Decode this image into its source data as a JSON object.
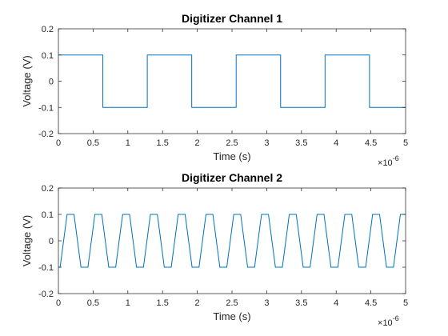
{
  "figure": {
    "background": "#ffffff"
  },
  "chart_data": [
    {
      "type": "line",
      "title": "Digitizer Channel 1",
      "xlabel": "Time (s)",
      "ylabel": "Voltage (V)",
      "xlim": [
        0,
        5
      ],
      "ylim": [
        -0.2,
        0.2
      ],
      "x_multiplier": "10",
      "x_multiplier_exponent": "-6",
      "xticks": [
        0,
        0.5,
        1,
        1.5,
        2,
        2.5,
        3,
        3.5,
        4,
        4.5,
        5
      ],
      "xtick_labels": [
        "0",
        "0.5",
        "1",
        "1.5",
        "2",
        "2.5",
        "3",
        "3.5",
        "4",
        "4.5",
        "5"
      ],
      "yticks": [
        -0.2,
        -0.1,
        0,
        0.1,
        0.2
      ],
      "ytick_labels": [
        "-0.2",
        "-0.1",
        "0",
        "0.1",
        "0.2"
      ],
      "grid": false,
      "series": [
        {
          "color": "#0072bd",
          "x": [
            0,
            0.64,
            0.64,
            1.28,
            1.28,
            1.92,
            1.92,
            2.56,
            2.56,
            3.2,
            3.2,
            3.84,
            3.84,
            4.48,
            4.48,
            5
          ],
          "y": [
            0.1,
            0.1,
            -0.1,
            -0.1,
            0.1,
            0.1,
            -0.1,
            -0.1,
            0.1,
            0.1,
            -0.1,
            -0.1,
            0.1,
            0.1,
            -0.1,
            -0.1
          ]
        }
      ]
    },
    {
      "type": "line",
      "title": "Digitizer Channel 2",
      "xlabel": "Time (s)",
      "ylabel": "Voltage (V)",
      "xlim": [
        0,
        5
      ],
      "ylim": [
        -0.2,
        0.2
      ],
      "x_multiplier": "10",
      "x_multiplier_exponent": "-6",
      "xticks": [
        0,
        0.5,
        1,
        1.5,
        2,
        2.5,
        3,
        3.5,
        4,
        4.5,
        5
      ],
      "xtick_labels": [
        "0",
        "0.5",
        "1",
        "1.5",
        "2",
        "2.5",
        "3",
        "3.5",
        "4",
        "4.5",
        "5"
      ],
      "yticks": [
        -0.2,
        -0.1,
        0,
        0.1,
        0.2
      ],
      "ytick_labels": [
        "-0.2",
        "-0.1",
        "0",
        "0.1",
        "0.2"
      ],
      "grid": false,
      "series": [
        {
          "color": "#0072bd",
          "x": [
            0,
            0.025,
            0.125,
            0.225,
            0.325,
            0.425,
            0.525,
            0.625,
            0.725,
            0.825,
            0.925,
            1.025,
            1.125,
            1.225,
            1.325,
            1.425,
            1.525,
            1.625,
            1.725,
            1.825,
            1.925,
            2.025,
            2.125,
            2.225,
            2.325,
            2.425,
            2.525,
            2.625,
            2.725,
            2.825,
            2.925,
            3.025,
            3.125,
            3.225,
            3.325,
            3.425,
            3.525,
            3.625,
            3.725,
            3.825,
            3.925,
            4.025,
            4.125,
            4.225,
            4.325,
            4.425,
            4.525,
            4.625,
            4.725,
            4.825,
            4.925,
            5
          ],
          "y": [
            -0.1,
            -0.1,
            0.1,
            0.1,
            -0.1,
            -0.1,
            0.1,
            0.1,
            -0.1,
            -0.1,
            0.1,
            0.1,
            -0.1,
            -0.1,
            0.1,
            0.1,
            -0.1,
            -0.1,
            0.1,
            0.1,
            -0.1,
            -0.1,
            0.1,
            0.1,
            -0.1,
            -0.1,
            0.1,
            0.1,
            -0.1,
            -0.1,
            0.1,
            0.1,
            -0.1,
            -0.1,
            0.1,
            0.1,
            -0.1,
            -0.1,
            0.1,
            0.1,
            -0.1,
            -0.1,
            0.1,
            0.1,
            -0.1,
            -0.1,
            0.1,
            0.1,
            -0.1,
            -0.1,
            0.1,
            0.1
          ]
        }
      ]
    }
  ]
}
